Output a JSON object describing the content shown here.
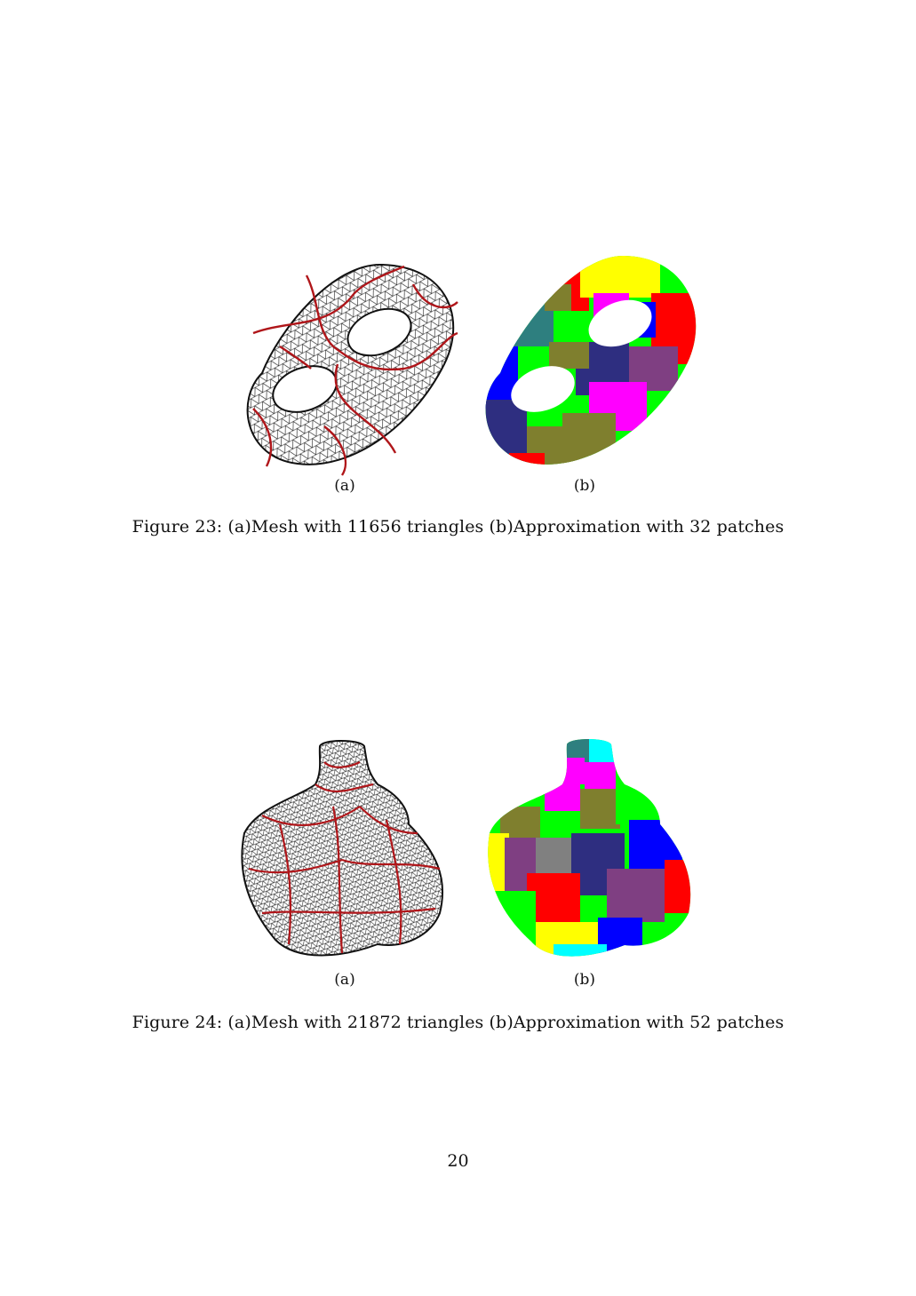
{
  "figures": [
    {
      "subfigures": [
        {
          "label": "(a)",
          "description": "wireframe mesh",
          "wire_color": "#111111",
          "seam_color": "#b0161a"
        },
        {
          "label": "(b)",
          "description": "colored patches"
        }
      ],
      "caption": "Figure 23: (a)Mesh with 11656 triangles (b)Approximation with 32 patches"
    },
    {
      "subfigures": [
        {
          "label": "(a)",
          "description": "wireframe mesh"
        },
        {
          "label": "(b)",
          "description": "colored patches"
        }
      ],
      "caption": "Figure 24: (a)Mesh with 21872 triangles (b)Approximation with 52 patches"
    }
  ],
  "page_number": "20",
  "patch_colors": [
    "#0000ff",
    "#ff0000",
    "#00ff00",
    "#ffff00",
    "#ff00ff",
    "#00ffff",
    "#2e2e80",
    "#7f3f82",
    "#7f7f2e",
    "#2e7f7f",
    "#808080"
  ]
}
